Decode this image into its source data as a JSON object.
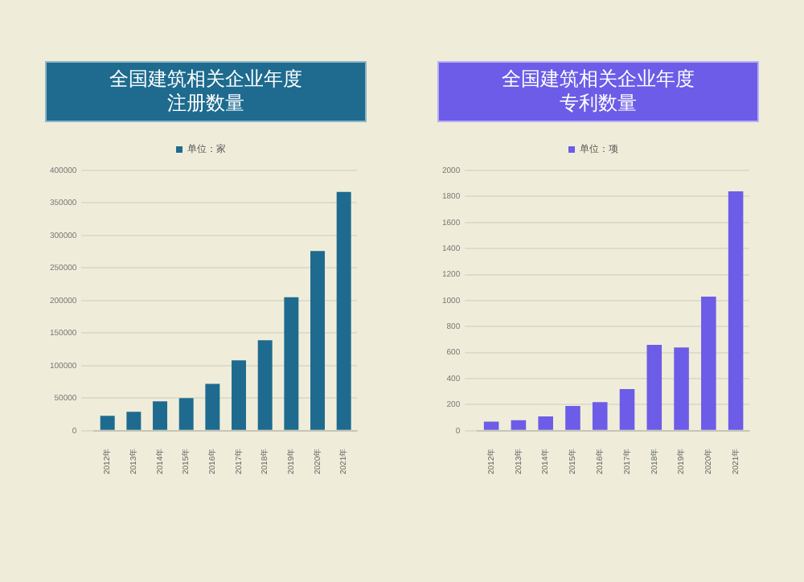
{
  "chart_data": [
    {
      "type": "bar",
      "title": "全国建筑相关企业年度注册数量",
      "categories": [
        "2012年",
        "2013年",
        "2014年",
        "2015年",
        "2016年",
        "2017年",
        "2018年",
        "2019年",
        "2020年",
        "2021年"
      ],
      "series": [
        {
          "name": "单位：家",
          "color": "#1e6b8f",
          "values": [
            23000,
            29000,
            45000,
            50000,
            72000,
            108000,
            139000,
            205000,
            276000,
            367000
          ]
        }
      ],
      "ylim": [
        0,
        400000
      ],
      "yticks": [
        0,
        50000,
        100000,
        150000,
        200000,
        250000,
        300000,
        350000,
        400000
      ],
      "grid": "y",
      "legend": "top"
    },
    {
      "type": "bar",
      "title": "全国建筑相关企业年度专利数量",
      "categories": [
        "2012年",
        "2013年",
        "2014年",
        "2015年",
        "2016年",
        "2017年",
        "2018年",
        "2019年",
        "2020年",
        "2021年"
      ],
      "series": [
        {
          "name": "单位：项",
          "color": "#6c5ce7",
          "values": [
            70,
            80,
            110,
            190,
            220,
            320,
            660,
            640,
            1030,
            1840
          ]
        }
      ],
      "ylim": [
        0,
        2000
      ],
      "yticks": [
        0,
        200,
        400,
        600,
        800,
        1000,
        1200,
        1400,
        1600,
        1800,
        2000
      ],
      "grid": "y",
      "legend": "top"
    }
  ]
}
